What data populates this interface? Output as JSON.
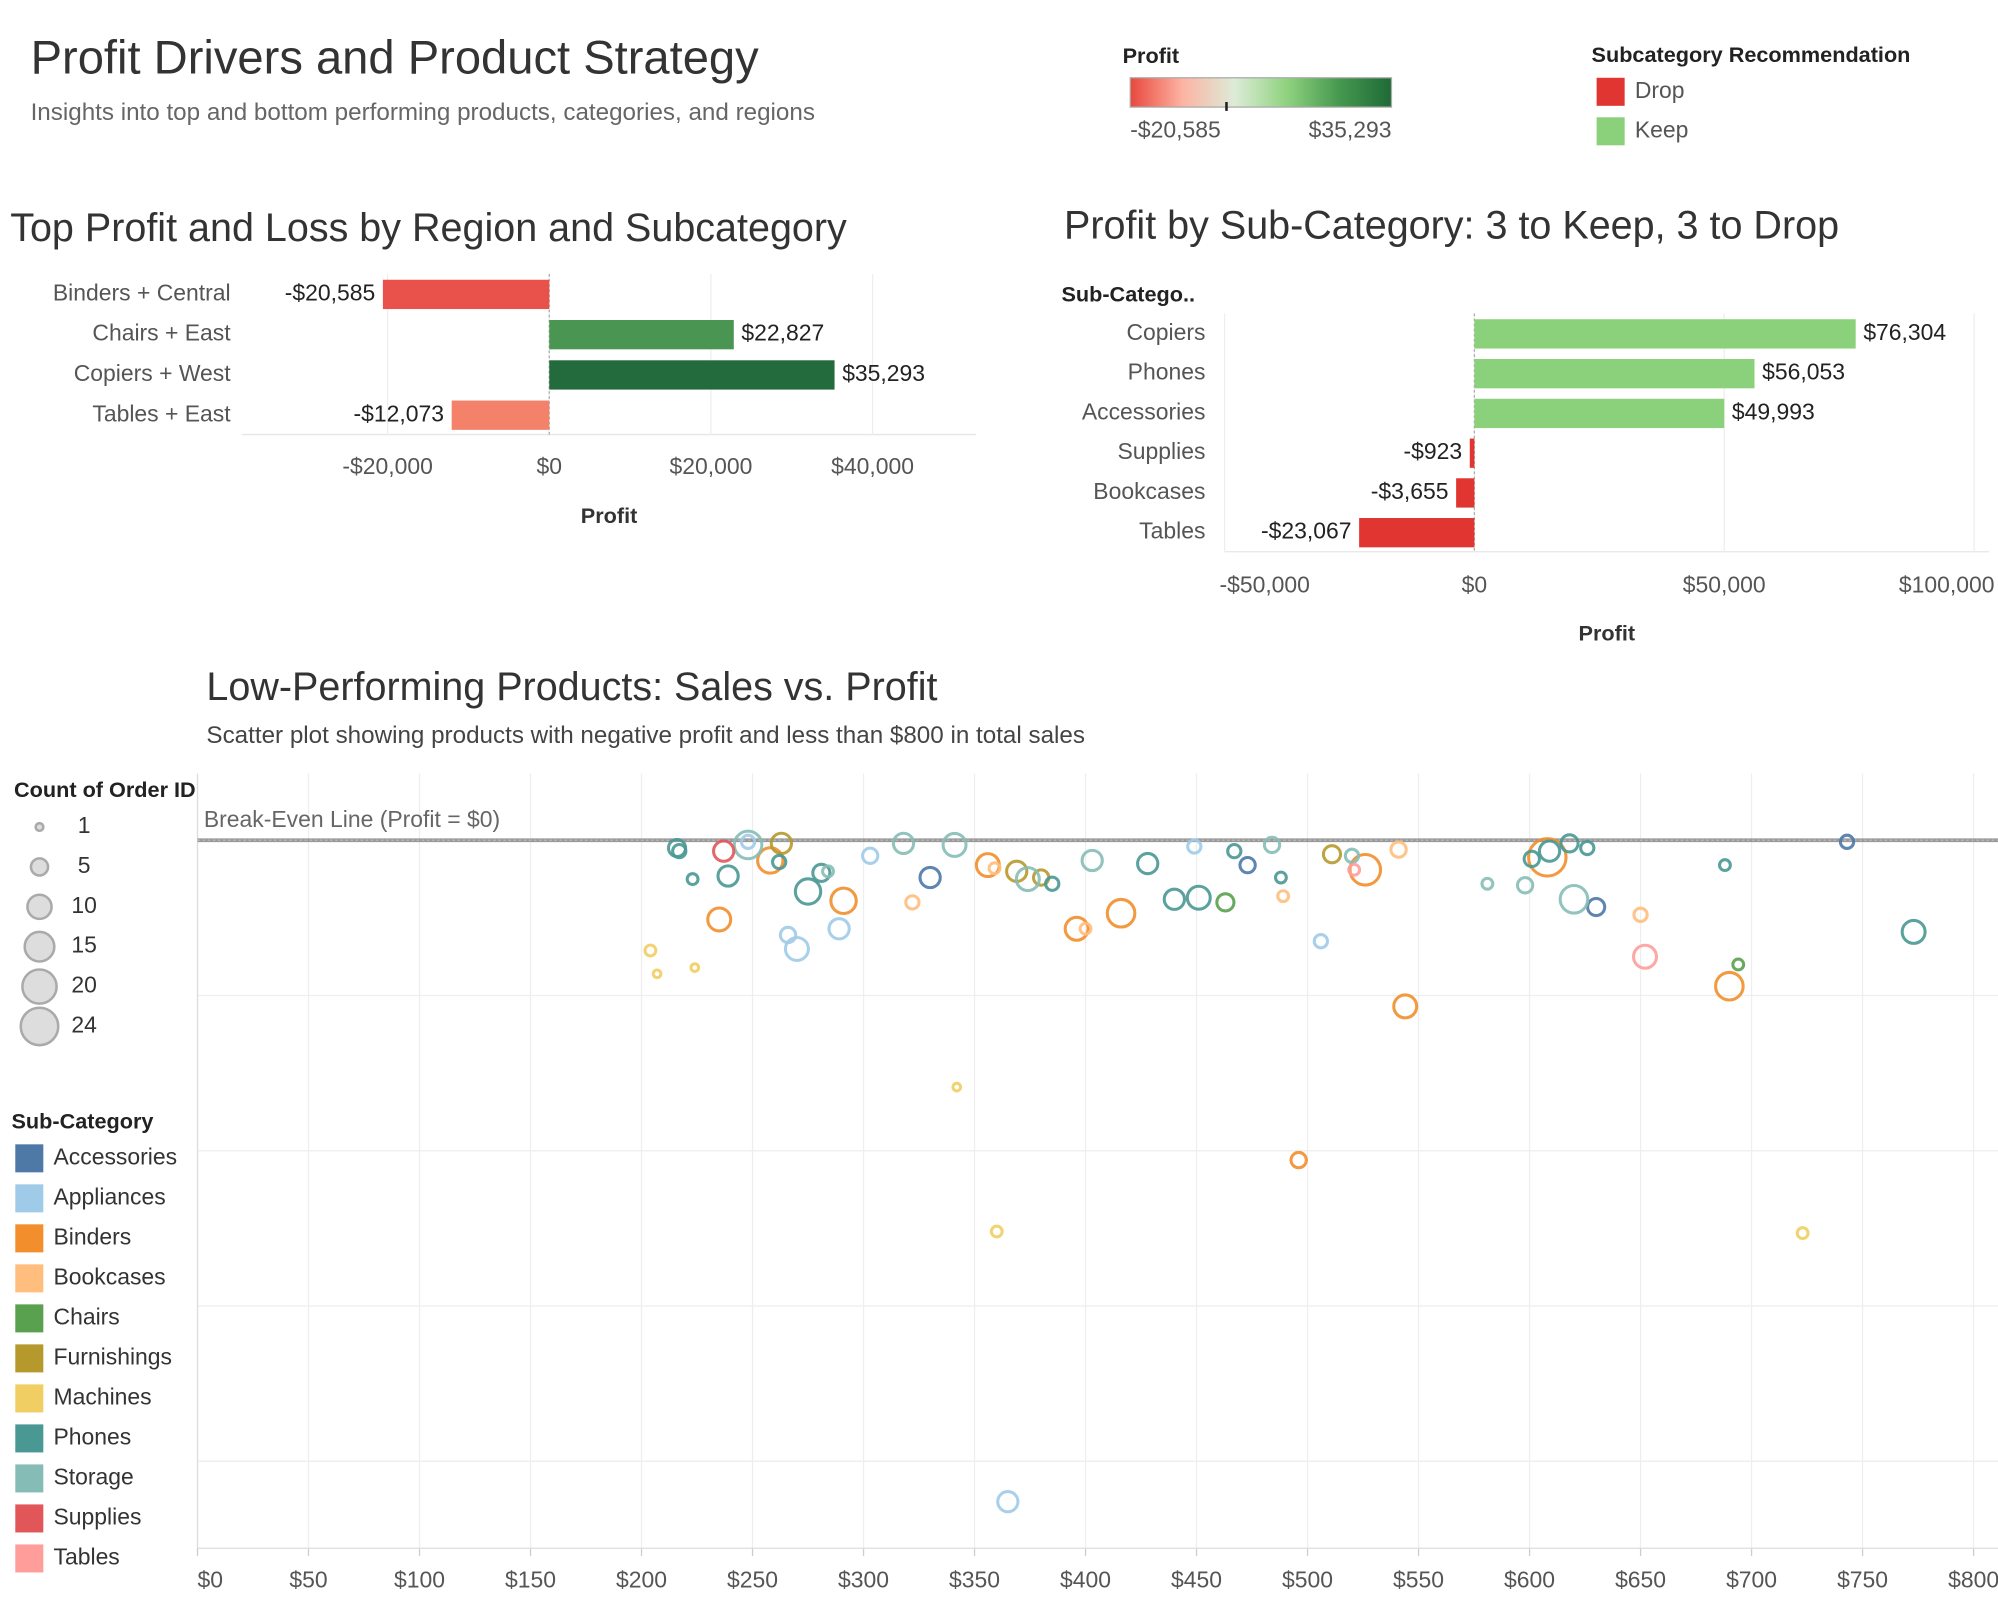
{
  "title": "Profit Drivers and Product Strategy",
  "subtitle": "Insights into top and bottom performing products, categories, and regions",
  "profit_legend": {
    "title": "Profit",
    "colors": [
      "#e8483d",
      "#fdb3a3",
      "#dcecd7",
      "#8fd27f",
      "#46984f",
      "#1e6a37"
    ],
    "min": {
      "value": -20585,
      "label": "-$20,585"
    },
    "max": {
      "value": 35293,
      "label": "$35,293"
    }
  },
  "recommendation_legend": {
    "title": "Subcategory Recommendation",
    "items": [
      {
        "name": "Drop",
        "color": "#e03531"
      },
      {
        "name": "Keep",
        "color": "#8bd07a"
      }
    ]
  },
  "chart_data": [
    {
      "type": "hbar",
      "title": "Top Profit and Loss by Region and Subcategory",
      "categories": [
        "Binders + Central",
        "Chairs + East",
        "Copiers + West",
        "Tables + East"
      ],
      "values": [
        -20585,
        22827,
        35293,
        -12073
      ],
      "value_labels": [
        "-$20,585",
        "$22,827",
        "$35,293",
        "-$12,073"
      ],
      "colors": [
        "#e9524b",
        "#4a9552",
        "#236a3d",
        "#f4826a"
      ],
      "xlim": [
        -38000,
        52800
      ],
      "xticks": [
        {
          "value": -20000,
          "label": "-$20,000"
        },
        {
          "value": 0,
          "label": "$0"
        },
        {
          "value": 20000,
          "label": "$20,000"
        },
        {
          "value": 40000,
          "label": "$40,000"
        }
      ],
      "x_label": "Profit",
      "grid": true
    },
    {
      "type": "hbar",
      "title": "Profit by Sub-Category: 3 to Keep, 3 to Drop",
      "row_header": "Sub-Catego..",
      "categories": [
        "Copiers",
        "Phones",
        "Accessories",
        "Supplies",
        "Bookcases",
        "Tables"
      ],
      "values": [
        76304,
        56053,
        49993,
        -923,
        -3655,
        -23067
      ],
      "value_labels": [
        "$76,304",
        "$56,053",
        "$49,993",
        "-$923",
        "-$3,655",
        "-$23,067"
      ],
      "colors": [
        "#8bd07a",
        "#8bd07a",
        "#8bd07a",
        "#e03531",
        "#e03531",
        "#e03531"
      ],
      "xlim": [
        -50000,
        103000
      ],
      "xticks": [
        {
          "value": -50000,
          "label": "-$50,000"
        },
        {
          "value": 0,
          "label": "$0"
        },
        {
          "value": 50000,
          "label": "$50,000"
        },
        {
          "value": 100000,
          "label": "$100,000"
        }
      ],
      "x_label": "Profit",
      "grid": true
    },
    {
      "type": "scatter",
      "title": "Low-Performing Products: Sales vs. Profit",
      "subtitle": "Scatter plot showing products with negative profit and less than $800 in total sales",
      "xlim": [
        0,
        811
      ],
      "xticks": [
        {
          "value": 0,
          "label": "$0"
        },
        {
          "value": 50,
          "label": "$50"
        },
        {
          "value": 100,
          "label": "$100"
        },
        {
          "value": 150,
          "label": "$150"
        },
        {
          "value": 200,
          "label": "$200"
        },
        {
          "value": 250,
          "label": "$250"
        },
        {
          "value": 300,
          "label": "$300"
        },
        {
          "value": 350,
          "label": "$350"
        },
        {
          "value": 400,
          "label": "$400"
        },
        {
          "value": 450,
          "label": "$450"
        },
        {
          "value": 500,
          "label": "$500"
        },
        {
          "value": 550,
          "label": "$550"
        },
        {
          "value": 600,
          "label": "$600"
        },
        {
          "value": 650,
          "label": "$650"
        },
        {
          "value": 700,
          "label": "$700"
        },
        {
          "value": 750,
          "label": "$750"
        },
        {
          "value": 800,
          "label": "$800"
        }
      ],
      "ylim": [
        -456,
        43
      ],
      "yticks": [
        -400,
        -300,
        -200,
        -100
      ],
      "grid": true,
      "reference_line": {
        "value": 0,
        "label": "Break-Even Line (Profit = $0)"
      },
      "size_legend": {
        "title": "Count of Order ID",
        "values": [
          1,
          5,
          10,
          15,
          20,
          24
        ]
      },
      "color_legend_title": "Sub-Category",
      "series": [
        {
          "name": "Accessories",
          "color": "#4e79a7",
          "x": [
            330,
            473,
            630,
            743
          ],
          "values": [
            -24,
            -16,
            -43,
            -1
          ],
          "sizes": [
            7,
            4,
            5,
            3
          ]
        },
        {
          "name": "Appliances",
          "color": "#a0cbe8",
          "x": [
            248,
            303,
            266,
            270,
            289,
            449,
            506,
            365
          ],
          "values": [
            -1,
            -10,
            -61,
            -70,
            -57,
            -4,
            -65,
            -426
          ],
          "sizes": [
            3,
            4,
            4,
            9,
            7,
            3,
            3,
            7
          ]
        },
        {
          "name": "Binders",
          "color": "#f28e2b",
          "x": [
            258,
            235,
            291,
            356,
            396,
            416,
            526,
            608,
            544,
            496,
            690
          ],
          "values": [
            -13,
            -51,
            -39,
            -16,
            -57,
            -47,
            -19,
            -11,
            -107,
            -206,
            -94
          ],
          "sizes": [
            11,
            9,
            11,
            9,
            9,
            13,
            16,
            24,
            9,
            4,
            13
          ]
        },
        {
          "name": "Bookcases",
          "color": "#ffbe7d",
          "x": [
            322,
            359,
            400,
            489,
            541,
            650
          ],
          "values": [
            -40,
            -18,
            -57,
            -36,
            -6,
            -48
          ],
          "sizes": [
            3,
            2,
            2,
            2,
            4,
            3
          ]
        },
        {
          "name": "Chairs",
          "color": "#59a14f",
          "x": [
            463,
            694
          ],
          "values": [
            -40,
            -80
          ],
          "sizes": [
            5,
            2
          ]
        },
        {
          "name": "Furnishings",
          "color": "#b6992d",
          "x": [
            263,
            369,
            380,
            511
          ],
          "values": [
            -2,
            -20,
            -24,
            -9
          ],
          "sizes": [
            7,
            7,
            4,
            5
          ]
        },
        {
          "name": "Machines",
          "color": "#f1ce63",
          "x": [
            204,
            207,
            224,
            342,
            360,
            723
          ],
          "values": [
            -71,
            -86,
            -82,
            -159,
            -252,
            -253
          ],
          "sizes": [
            2,
            1,
            1,
            1,
            2,
            2
          ]
        },
        {
          "name": "Phones",
          "color": "#499894",
          "x": [
            216,
            217,
            223,
            239,
            262,
            275,
            281,
            428,
            440,
            451,
            467,
            488,
            601,
            609,
            618,
            626,
            688,
            773,
            385
          ],
          "values": [
            -5,
            -7,
            -25,
            -23,
            -14,
            -33,
            -21,
            -15,
            -38,
            -37,
            -7,
            -24,
            -12,
            -7,
            -2,
            -5,
            -16,
            -59,
            -28
          ],
          "sizes": [
            5,
            3,
            2,
            7,
            3,
            11,
            5,
            7,
            7,
            9,
            3,
            2,
            4,
            7,
            5,
            3,
            2,
            9,
            3
          ]
        },
        {
          "name": "Storage",
          "color": "#86bcb6",
          "x": [
            248,
            318,
            341,
            374,
            403,
            484,
            520,
            581,
            598,
            620,
            284
          ],
          "values": [
            -3,
            -2,
            -3,
            -25,
            -13,
            -3,
            -10,
            -28,
            -29,
            -38,
            -20
          ],
          "sizes": [
            13,
            7,
            9,
            9,
            7,
            4,
            3,
            2,
            4,
            13,
            2
          ]
        },
        {
          "name": "Supplies",
          "color": "#e15759",
          "x": [
            237
          ],
          "values": [
            -7
          ],
          "sizes": [
            7
          ]
        },
        {
          "name": "Tables",
          "color": "#ff9d9a",
          "x": [
            652,
            521
          ],
          "values": [
            -75,
            -19
          ],
          "sizes": [
            9,
            2
          ]
        }
      ]
    }
  ]
}
